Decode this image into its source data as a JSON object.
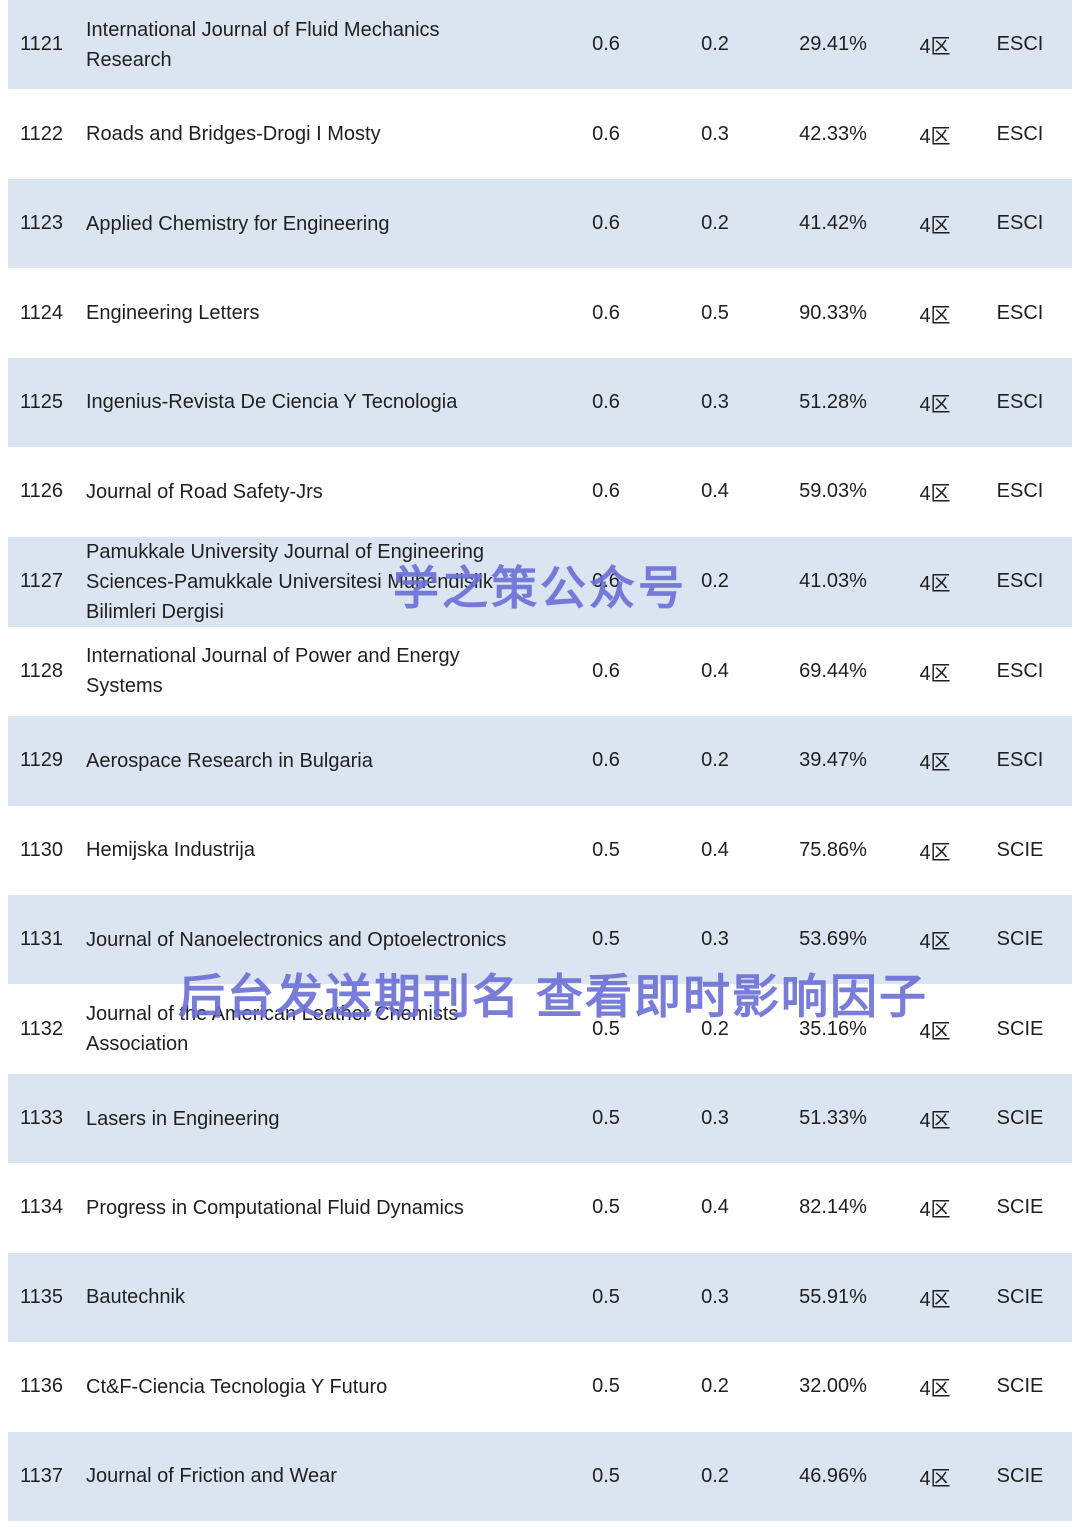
{
  "table": {
    "rows": [
      {
        "rank": "1121",
        "journal": "International Journal of Fluid Mechanics Research",
        "value1": "0.6",
        "value2": "0.2",
        "percent": "29.41%",
        "zone": "4区",
        "index_type": "ESCI"
      },
      {
        "rank": "1122",
        "journal": "Roads and Bridges-Drogi I Mosty",
        "value1": "0.6",
        "value2": "0.3",
        "percent": "42.33%",
        "zone": "4区",
        "index_type": "ESCI"
      },
      {
        "rank": "1123",
        "journal": "Applied Chemistry for Engineering",
        "value1": "0.6",
        "value2": "0.2",
        "percent": "41.42%",
        "zone": "4区",
        "index_type": "ESCI"
      },
      {
        "rank": "1124",
        "journal": "Engineering Letters",
        "value1": "0.6",
        "value2": "0.5",
        "percent": "90.33%",
        "zone": "4区",
        "index_type": "ESCI"
      },
      {
        "rank": "1125",
        "journal": "Ingenius-Revista De Ciencia Y Tecnologia",
        "value1": "0.6",
        "value2": "0.3",
        "percent": "51.28%",
        "zone": "4区",
        "index_type": "ESCI"
      },
      {
        "rank": "1126",
        "journal": "Journal of Road Safety-Jrs",
        "value1": "0.6",
        "value2": "0.4",
        "percent": "59.03%",
        "zone": "4区",
        "index_type": "ESCI"
      },
      {
        "rank": "1127",
        "journal": "Pamukkale University Journal of Engineering Sciences-Pamukkale Universitesi Muhendislik Bilimleri Dergisi",
        "value1": "0.6",
        "value2": "0.2",
        "percent": "41.03%",
        "zone": "4区",
        "index_type": "ESCI"
      },
      {
        "rank": "1128",
        "journal": "International Journal of Power and Energy Systems",
        "value1": "0.6",
        "value2": "0.4",
        "percent": "69.44%",
        "zone": "4区",
        "index_type": "ESCI"
      },
      {
        "rank": "1129",
        "journal": "Aerospace Research in Bulgaria",
        "value1": "0.6",
        "value2": "0.2",
        "percent": "39.47%",
        "zone": "4区",
        "index_type": "ESCI"
      },
      {
        "rank": "1130",
        "journal": "Hemijska Industrija",
        "value1": "0.5",
        "value2": "0.4",
        "percent": "75.86%",
        "zone": "4区",
        "index_type": "SCIE"
      },
      {
        "rank": "1131",
        "journal": "Journal of Nanoelectronics and Optoelectronics",
        "value1": "0.5",
        "value2": "0.3",
        "percent": "53.69%",
        "zone": "4区",
        "index_type": "SCIE"
      },
      {
        "rank": "1132",
        "journal": "Journal of the American Leather Chemists Association",
        "value1": "0.5",
        "value2": "0.2",
        "percent": "35.16%",
        "zone": "4区",
        "index_type": "SCIE"
      },
      {
        "rank": "1133",
        "journal": "Lasers in Engineering",
        "value1": "0.5",
        "value2": "0.3",
        "percent": "51.33%",
        "zone": "4区",
        "index_type": "SCIE"
      },
      {
        "rank": "1134",
        "journal": "Progress in Computational Fluid Dynamics",
        "value1": "0.5",
        "value2": "0.4",
        "percent": "82.14%",
        "zone": "4区",
        "index_type": "SCIE"
      },
      {
        "rank": "1135",
        "journal": "Bautechnik",
        "value1": "0.5",
        "value2": "0.3",
        "percent": "55.91%",
        "zone": "4区",
        "index_type": "SCIE"
      },
      {
        "rank": "1136",
        "journal": "Ct&F-Ciencia Tecnologia Y Futuro",
        "value1": "0.5",
        "value2": "0.2",
        "percent": "32.00%",
        "zone": "4区",
        "index_type": "SCIE"
      },
      {
        "rank": "1137",
        "journal": "Journal of Friction and Wear",
        "value1": "0.5",
        "value2": "0.2",
        "percent": "46.96%",
        "zone": "4区",
        "index_type": "SCIE"
      }
    ]
  },
  "watermarks": {
    "wm1": "学之策公众号",
    "wm2": "后台发送期刊名 查看即时影响因子"
  },
  "colors": {
    "row_alt_background": "#dbe5f1",
    "row_background": "#ffffff",
    "text": "#1f1f1f",
    "watermark": "#6b6fd6"
  }
}
